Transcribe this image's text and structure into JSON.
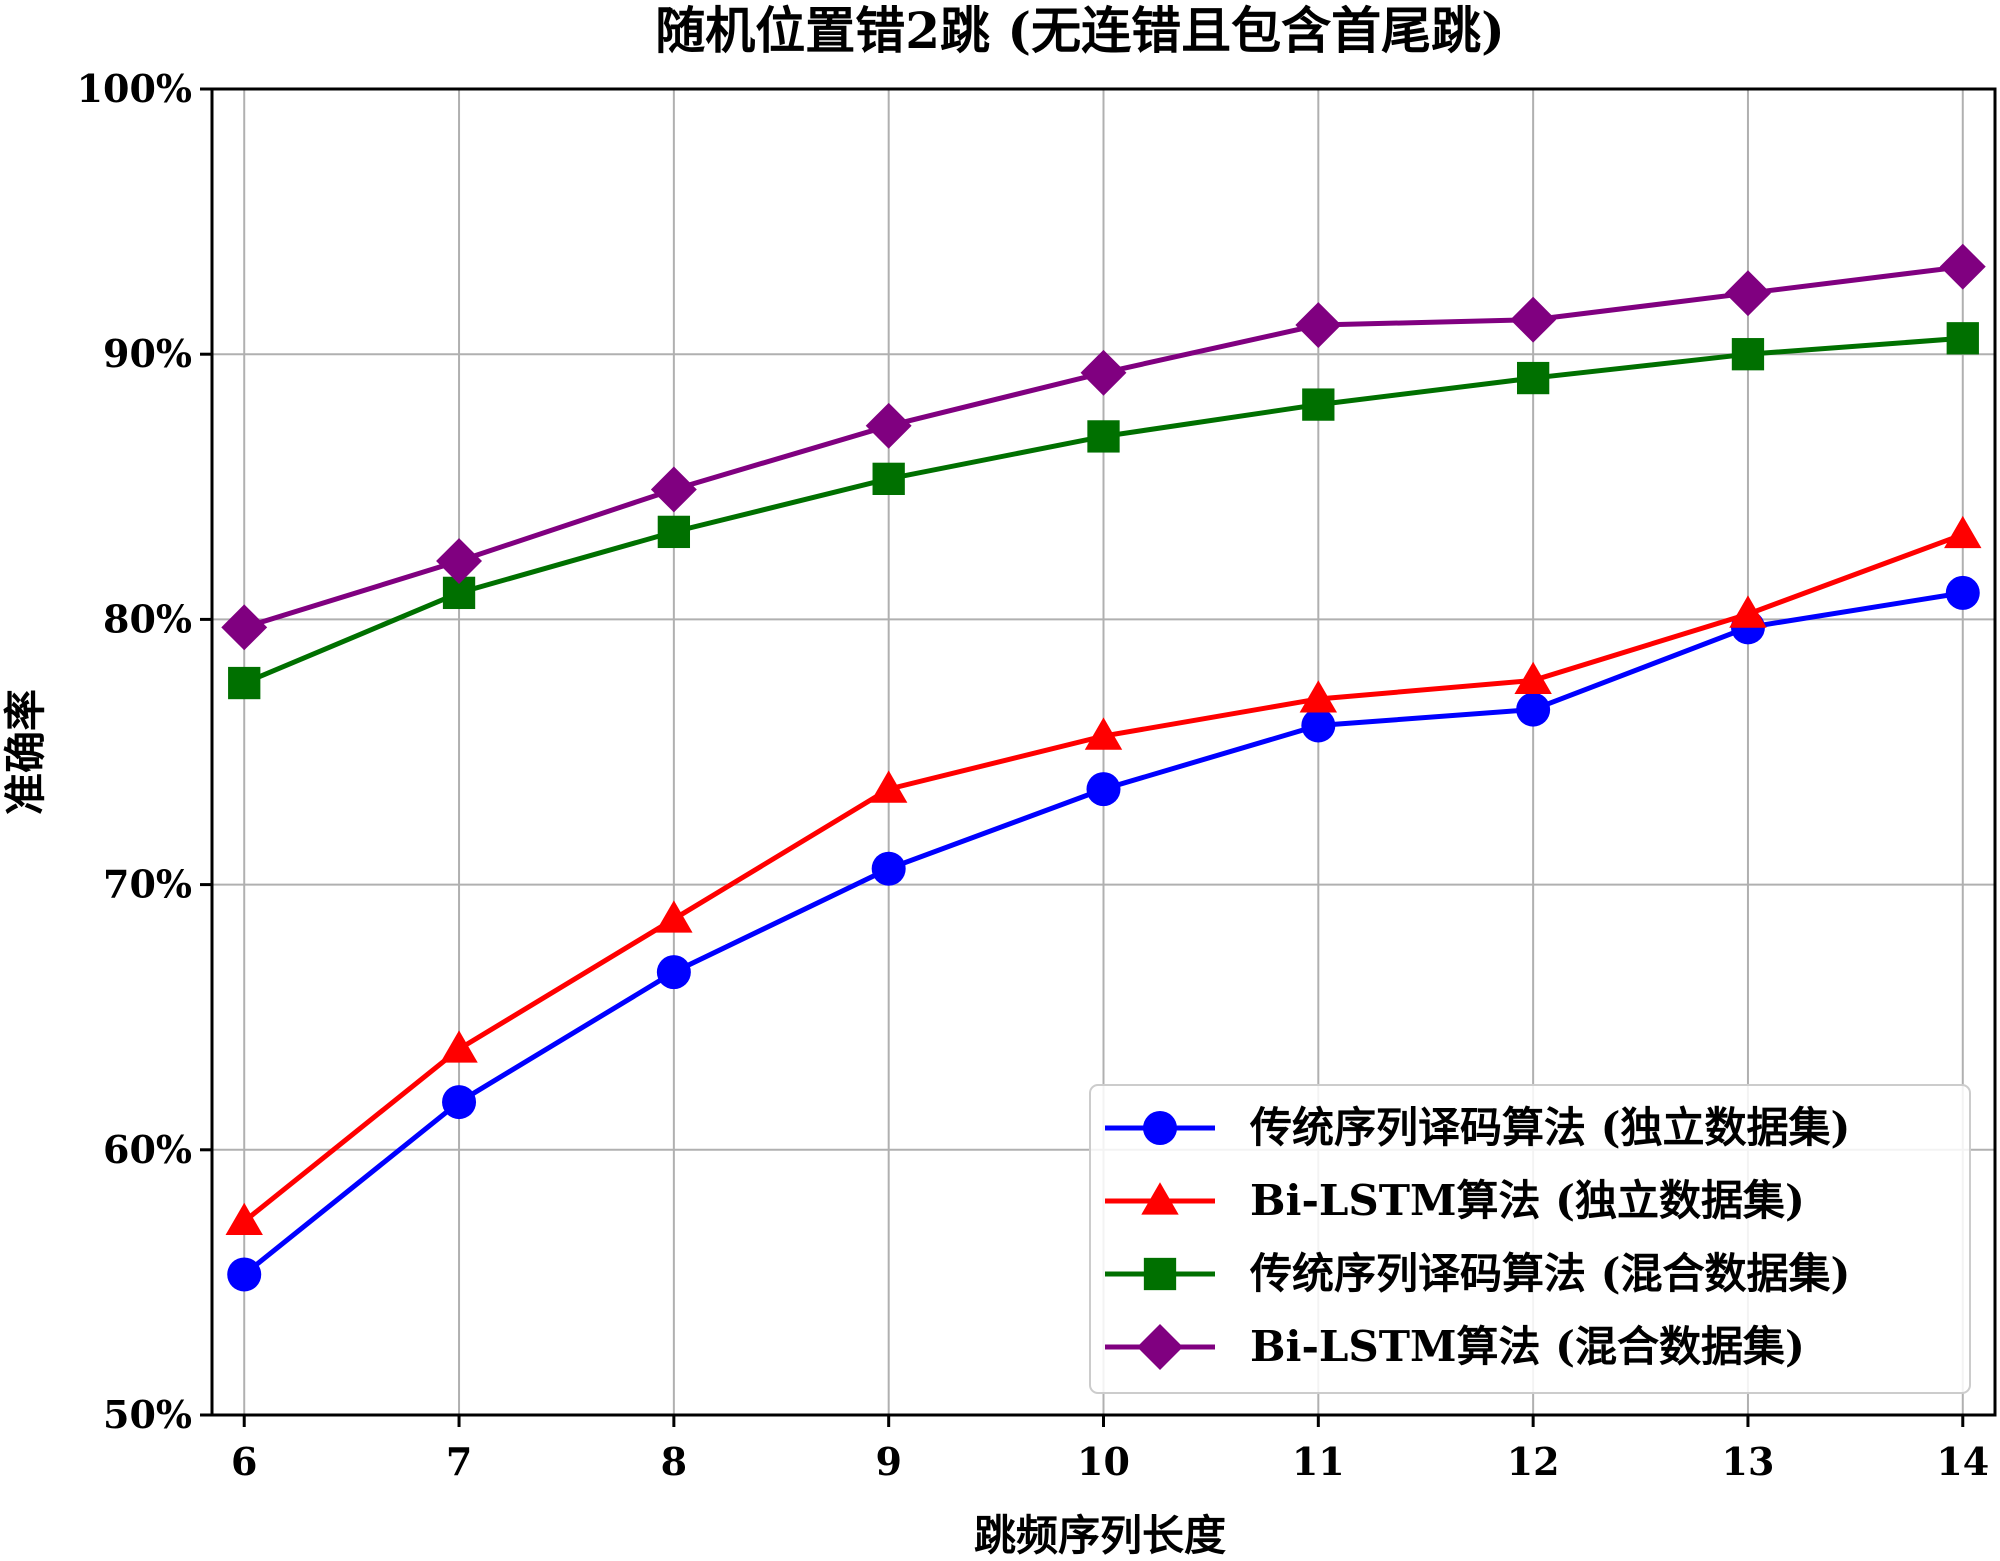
{
  "chart_data": {
    "type": "line",
    "title": "随机位置错2跳 (无连错且包含首尾跳)",
    "xlabel": "跳频序列长度",
    "ylabel": "准确率",
    "x": [
      6,
      7,
      8,
      9,
      10,
      11,
      12,
      13,
      14
    ],
    "xlim": [
      5.85,
      14.15
    ],
    "ylim": [
      50,
      100
    ],
    "yticks": [
      "50%",
      "60%",
      "70%",
      "80%",
      "90%",
      "100%"
    ],
    "xticks": [
      "6",
      "7",
      "8",
      "9",
      "10",
      "11",
      "12",
      "13",
      "14"
    ],
    "grid": true,
    "legend_position": "lower-right",
    "series": [
      {
        "name": "传统序列译码算法 (独立数据集)",
        "color": "#0000ff",
        "marker": "circle",
        "values": [
          55.3,
          61.8,
          66.7,
          70.6,
          73.6,
          76.0,
          76.6,
          79.7,
          81.0
        ]
      },
      {
        "name": "Bi-LSTM算法 (独立数据集)",
        "color": "#ff0000",
        "marker": "triangle",
        "values": [
          57.3,
          63.8,
          68.7,
          73.6,
          75.6,
          77.0,
          77.7,
          80.2,
          83.2
        ]
      },
      {
        "name": "传统序列译码算法 (混合数据集)",
        "color": "#007000",
        "marker": "square",
        "values": [
          77.6,
          81.0,
          83.3,
          85.3,
          86.9,
          88.1,
          89.1,
          90.0,
          90.6
        ]
      },
      {
        "name": "Bi-LSTM算法 (混合数据集)",
        "color": "#800080",
        "marker": "diamond",
        "values": [
          79.7,
          82.2,
          84.9,
          87.3,
          89.3,
          91.1,
          91.3,
          92.3,
          93.3
        ]
      }
    ]
  }
}
